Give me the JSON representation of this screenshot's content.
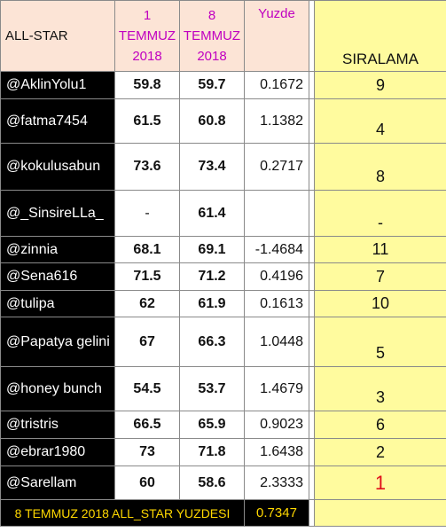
{
  "header": {
    "all_star": "ALL-STAR",
    "date1": "1 TEMMUZ 2018",
    "date2": "8 TEMMUZ 2018",
    "yuzde": "Yuzde",
    "siralama": "SIRALAMA"
  },
  "rows": [
    {
      "name": "@AklinYolu1",
      "v1": "59.8",
      "v2": "59.7",
      "pct": "0.1672",
      "rank": "9"
    },
    {
      "name": "@fatma7454",
      "v1": "61.5",
      "v2": "60.8",
      "pct": "1.1382",
      "rank": "4"
    },
    {
      "name": "@kokulusabun",
      "v1": "73.6",
      "v2": "73.4",
      "pct": "0.2717",
      "rank": "8"
    },
    {
      "name": "@_SinsireLLa_",
      "v1": "-",
      "v2": "61.4",
      "pct": "",
      "rank": "-"
    },
    {
      "name": "@zinnia",
      "v1": "68.1",
      "v2": "69.1",
      "pct": "-1.4684",
      "rank": "11"
    },
    {
      "name": "@Sena616",
      "v1": "71.5",
      "v2": "71.2",
      "pct": "0.4196",
      "rank": "7"
    },
    {
      "name": "@tulipa",
      "v1": "62",
      "v2": "61.9",
      "pct": "0.1613",
      "rank": "10"
    },
    {
      "name": "@Papatya gelini",
      "v1": "67",
      "v2": "66.3",
      "pct": "1.0448",
      "rank": "5"
    },
    {
      "name": "@honey bunch",
      "v1": "54.5",
      "v2": "53.7",
      "pct": "1.4679",
      "rank": "3"
    },
    {
      "name": "@tristris",
      "v1": "66.5",
      "v2": "65.9",
      "pct": "0.9023",
      "rank": "6"
    },
    {
      "name": "@ebrar1980",
      "v1": "73",
      "v2": "71.8",
      "pct": "1.6438",
      "rank": "2"
    },
    {
      "name": "@Sarellam",
      "v1": "60",
      "v2": "58.6",
      "pct": "2.3333",
      "rank": "1"
    }
  ],
  "footer": {
    "label": "8 TEMMUZ 2018 ALL_STAR YUZDESI",
    "value": "0.7347"
  },
  "colors": {
    "header_bg": "#fce4d6",
    "date_text": "#c000c0",
    "rank_bg": "#fffb9e",
    "name_bg": "#000000",
    "footer_text": "#ffd800",
    "top_rank_text": "#e0101b"
  }
}
